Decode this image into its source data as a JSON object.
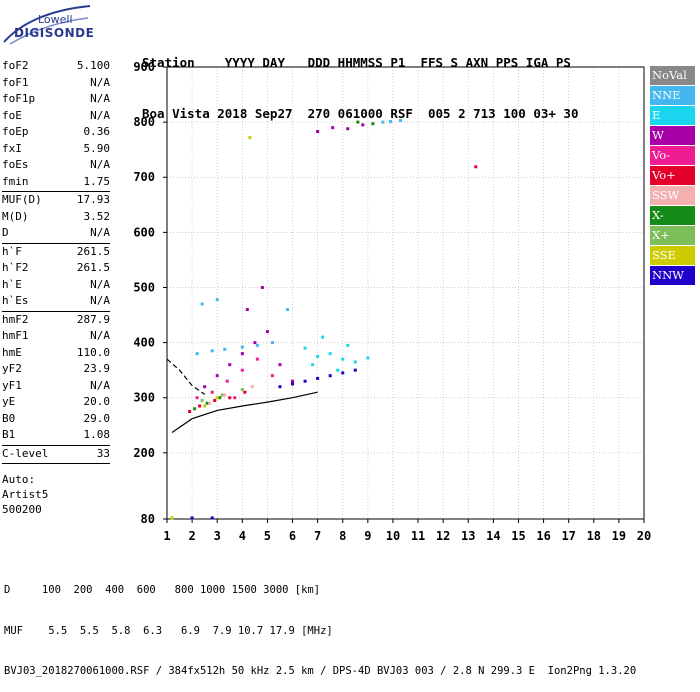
{
  "logo": {
    "line1": "Lowell",
    "line2": "DIGISONDE"
  },
  "header": {
    "line1": "Station    YYYY DAY   DDD HHMMSS P1  FFS S AXN PPS IGA PS",
    "line2": "Boa Vista 2018 Sep27  270 061000 RSF  005 2 713 100 03+ 30"
  },
  "params": [
    {
      "group": [
        {
          "k": "foF2",
          "v": "5.100"
        },
        {
          "k": "foF1",
          "v": "N/A"
        },
        {
          "k": "foF1p",
          "v": "N/A"
        },
        {
          "k": "foE",
          "v": "N/A"
        },
        {
          "k": "foEp",
          "v": "0.36"
        },
        {
          "k": "fxI",
          "v": "5.90"
        },
        {
          "k": "foEs",
          "v": "N/A"
        },
        {
          "k": "fmin",
          "v": "1.75"
        }
      ]
    },
    {
      "group": [
        {
          "k": "MUF(D)",
          "v": "17.93"
        },
        {
          "k": "M(D)",
          "v": "3.52"
        },
        {
          "k": "D",
          "v": "N/A"
        }
      ]
    },
    {
      "group": [
        {
          "k": "h`F",
          "v": "261.5"
        },
        {
          "k": "h`F2",
          "v": "261.5"
        },
        {
          "k": "h`E",
          "v": "N/A"
        },
        {
          "k": "h`Es",
          "v": "N/A"
        }
      ]
    },
    {
      "group": [
        {
          "k": "hmF2",
          "v": "287.9"
        },
        {
          "k": "hmF1",
          "v": "N/A"
        },
        {
          "k": "hmE",
          "v": "110.0"
        },
        {
          "k": "yF2",
          "v": "23.9"
        },
        {
          "k": "yF1",
          "v": "N/A"
        },
        {
          "k": "yE",
          "v": "20.0"
        },
        {
          "k": "B0",
          "v": "29.0"
        },
        {
          "k": "B1",
          "v": "1.08"
        }
      ]
    },
    {
      "group": [
        {
          "k": "C-level",
          "v": "33"
        }
      ]
    }
  ],
  "auto": {
    "label": "Auto:",
    "artist": "Artist5",
    "version": "500200"
  },
  "legend": [
    {
      "label": "NoVal",
      "color": "#888888"
    },
    {
      "label": "NNE",
      "color": "#43b7f0"
    },
    {
      "label": "E",
      "color": "#19d6ee"
    },
    {
      "label": "W",
      "color": "#a800a8"
    },
    {
      "label": "Vo-",
      "color": "#ef1c92"
    },
    {
      "label": "Vo+",
      "color": "#e3002b"
    },
    {
      "label": "SSW",
      "color": "#f4b0b0"
    },
    {
      "label": "X-",
      "color": "#168a16"
    },
    {
      "label": "X+",
      "color": "#7dbd5a"
    },
    {
      "label": "SSE",
      "color": "#cccc00"
    },
    {
      "label": "NNW",
      "color": "#1e00c8"
    }
  ],
  "footer": {
    "line1": "D     100  200  400  600   800 1000 1500 3000 [km]",
    "line2": "MUF    5.5  5.5  5.8  6.3   6.9  7.9 10.7 17.9 [MHz]",
    "line3": "BVJ03_2018270061000.RSF / 384fx512h 50 kHz 2.5 km / DPS-4D BVJ03 003 / 2.8 N 299.3 E  Ion2Png 1.3.20"
  },
  "chart_data": {
    "type": "scatter",
    "xlim": [
      1,
      20
    ],
    "ylim": [
      80,
      900
    ],
    "xticks": [
      1,
      2,
      3,
      4,
      5,
      6,
      7,
      8,
      9,
      10,
      11,
      12,
      13,
      14,
      15,
      16,
      17,
      18,
      19,
      20
    ],
    "yticks": [
      80,
      200,
      300,
      400,
      500,
      600,
      700,
      800,
      900
    ],
    "grid": true,
    "legend_position": "right",
    "series": [
      {
        "name": "E",
        "color": "#19d6ee",
        "points": [
          [
            6.5,
            390
          ],
          [
            7.0,
            375
          ],
          [
            7.5,
            380
          ],
          [
            8.0,
            370
          ],
          [
            8.5,
            365
          ],
          [
            9.0,
            372
          ],
          [
            7.2,
            410
          ],
          [
            6.8,
            360
          ],
          [
            8.2,
            395
          ],
          [
            7.8,
            350
          ]
        ]
      },
      {
        "name": "NNE",
        "color": "#43b7f0",
        "points": [
          [
            2.2,
            380
          ],
          [
            2.8,
            385
          ],
          [
            3.3,
            388
          ],
          [
            4.0,
            392
          ],
          [
            4.6,
            395
          ],
          [
            5.2,
            400
          ],
          [
            2.4,
            470
          ],
          [
            3.0,
            478
          ],
          [
            5.8,
            460
          ],
          [
            9.6,
            800
          ],
          [
            9.9,
            801
          ],
          [
            10.3,
            803
          ]
        ]
      },
      {
        "name": "W",
        "color": "#a800a8",
        "points": [
          [
            2.5,
            320
          ],
          [
            3.0,
            340
          ],
          [
            3.5,
            360
          ],
          [
            4.0,
            380
          ],
          [
            4.5,
            400
          ],
          [
            5.0,
            420
          ],
          [
            5.5,
            360
          ],
          [
            6.0,
            330
          ],
          [
            4.2,
            460
          ],
          [
            4.8,
            500
          ],
          [
            7.0,
            783
          ],
          [
            7.6,
            790
          ],
          [
            8.2,
            788
          ],
          [
            8.8,
            795
          ]
        ]
      },
      {
        "name": "Vo-",
        "color": "#ef1c92",
        "points": [
          [
            2.2,
            300
          ],
          [
            2.8,
            310
          ],
          [
            3.4,
            330
          ],
          [
            4.0,
            350
          ],
          [
            4.6,
            370
          ],
          [
            5.2,
            340
          ],
          [
            3.7,
            300
          ]
        ]
      },
      {
        "name": "Vo+",
        "color": "#e3002b",
        "points": [
          [
            1.9,
            275
          ],
          [
            2.3,
            285
          ],
          [
            2.9,
            295
          ],
          [
            3.5,
            300
          ],
          [
            4.1,
            310
          ],
          [
            13.3,
            719
          ]
        ]
      },
      {
        "name": "NNW",
        "color": "#1e00c8",
        "points": [
          [
            5.5,
            320
          ],
          [
            6.0,
            325
          ],
          [
            6.5,
            330
          ],
          [
            7.0,
            335
          ],
          [
            7.5,
            340
          ],
          [
            8.0,
            345
          ],
          [
            8.5,
            350
          ],
          [
            2.0,
            82
          ],
          [
            2.8,
            82
          ]
        ]
      },
      {
        "name": "X-",
        "color": "#168a16",
        "points": [
          [
            2.1,
            280
          ],
          [
            2.6,
            290
          ],
          [
            3.1,
            300
          ],
          [
            8.6,
            800
          ],
          [
            9.2,
            797
          ]
        ]
      },
      {
        "name": "X+",
        "color": "#7dbd5a",
        "points": [
          [
            2.4,
            295
          ],
          [
            3.2,
            305
          ],
          [
            4.0,
            315
          ]
        ]
      },
      {
        "name": "SSE",
        "color": "#cccc00",
        "points": [
          [
            2.5,
            285
          ],
          [
            3.0,
            300
          ],
          [
            4.3,
            772
          ],
          [
            1.2,
            82
          ]
        ]
      },
      {
        "name": "SSW",
        "color": "#f4b0b0",
        "points": [
          [
            2.7,
            290
          ],
          [
            3.3,
            305
          ],
          [
            4.4,
            320
          ]
        ]
      }
    ],
    "traces": [
      {
        "kind": "o-trace",
        "color": "#000000",
        "points": [
          [
            1.2,
            237
          ],
          [
            2,
            262
          ],
          [
            3,
            277
          ],
          [
            4,
            285
          ],
          [
            5,
            292
          ],
          [
            6,
            300
          ],
          [
            7,
            310
          ]
        ]
      },
      {
        "kind": "dashed",
        "color": "#000000",
        "points": [
          [
            1,
            370
          ],
          [
            1.5,
            350
          ],
          [
            2,
            322
          ],
          [
            2.5,
            306
          ]
        ]
      }
    ]
  }
}
